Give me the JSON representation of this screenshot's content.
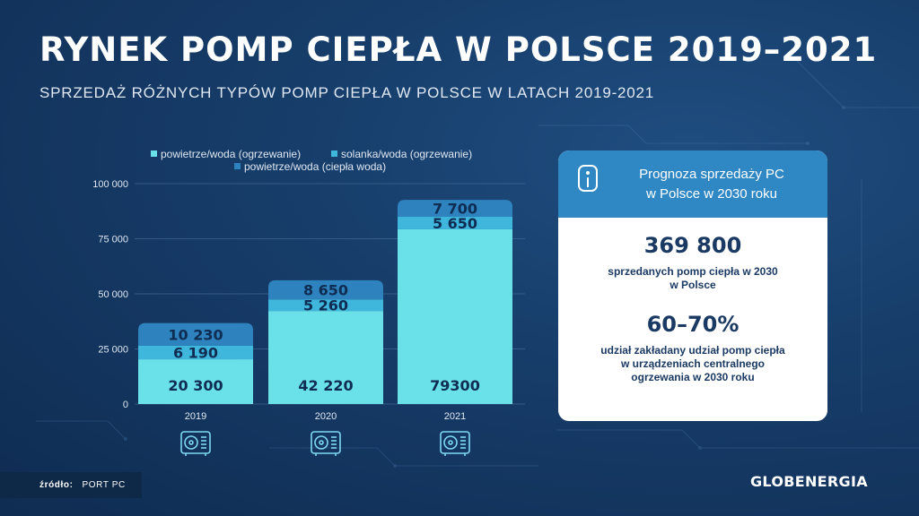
{
  "header": {
    "title": "RYNEK POMP CIEPŁA W POLSCE 2019–2021",
    "subtitle": "SPRZEDAŻ RÓŻNYCH TYPÓW POMP CIEPŁA W POLSCE W LATACH 2019-2021"
  },
  "colors": {
    "powietrze_woda_ogrzewanie": "#6ae1e8",
    "solanka_woda_ogrzewanie": "#3fb6dc",
    "powietrze_woda_ciepla_woda": "#2e82be"
  },
  "chart_data": {
    "type": "bar",
    "stacked": true,
    "categories": [
      "2019",
      "2020",
      "2021"
    ],
    "series": [
      {
        "name": "powietrze/woda (ogrzewanie)",
        "values": [
          20300,
          42220,
          79300
        ],
        "labels": [
          "20 300",
          "42 220",
          "79300"
        ],
        "color": "#6ae1e8"
      },
      {
        "name": "solanka/woda (ogrzewanie)",
        "values": [
          6190,
          5260,
          5650
        ],
        "labels": [
          "6 190",
          "5 260",
          "5 650"
        ],
        "color": "#3fb6dc"
      },
      {
        "name": "powietrze/woda (ciepła woda)",
        "values": [
          10230,
          8650,
          7700
        ],
        "labels": [
          "10 230",
          "8 650",
          "7 700"
        ],
        "color": "#2e82be"
      }
    ],
    "ylim": [
      0,
      100000
    ],
    "yticks": [
      0,
      25000,
      50000,
      75000,
      100000
    ],
    "ytick_labels": [
      "0",
      "25 000",
      "50 000",
      "75 000",
      "100 000"
    ],
    "grid": true,
    "legend": "top"
  },
  "category_icons": [
    "heat-pump-icon",
    "heat-pump-icon",
    "heat-pump-icon"
  ],
  "forecast": {
    "icon": "info-icon",
    "title_line1": "Prognoza sprzedaży PC",
    "title_line2": "w Polsce w 2030 roku",
    "stat1_value": "369 800",
    "stat1_line1": "sprzedanych pomp ciepła w 2030",
    "stat1_line2": "w Polsce",
    "stat2_value": "60–70%",
    "stat2_line1": "udział zakładany udział pomp ciepła",
    "stat2_line2": "w urządzeniach centralnego",
    "stat2_line3": "ogrzewania w 2030 roku"
  },
  "source": {
    "label": "źródło:",
    "value": "PORT PC"
  },
  "brand": "GLOBENERGIA"
}
